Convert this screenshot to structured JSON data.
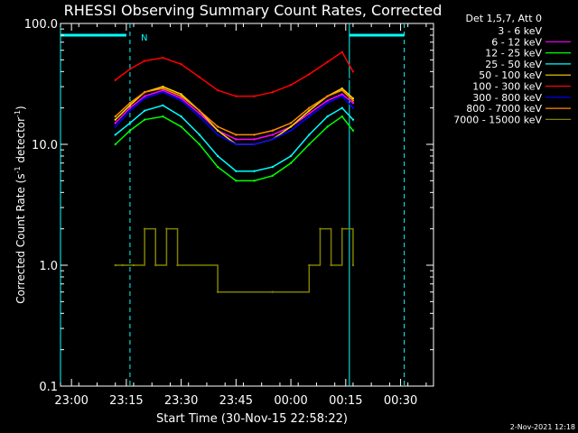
{
  "chart_data": {
    "type": "line",
    "title": "RHESSI Observing Summary Count Rates, Corrected",
    "xlabel": "Start Time (30-Nov-15 22:58:22)",
    "ylabel": "Corrected Count Rate (s⁻¹ detector⁻¹)",
    "ylabel_main": "Corrected Count Rate (s",
    "ylabel_sup1": "-1",
    "ylabel_mid": " detector",
    "ylabel_sup2": "-1",
    "ylabel_end": ")",
    "yscale": "log",
    "ylim": [
      0.1,
      100.0
    ],
    "xlim": [
      "22:57",
      "00:39"
    ],
    "x_ticks": [
      "23:00",
      "23:15",
      "23:30",
      "23:45",
      "00:00",
      "00:15",
      "00:30"
    ],
    "y_ticks": [
      "100.0",
      "10.0",
      "1.0",
      "0.1"
    ],
    "legend_header": "Det 1,5,7, Att 0",
    "footer_date": "2-Nov-2021 12:18",
    "flag_label": "N",
    "flag_bars": [
      {
        "start": "22:57",
        "end": "23:15",
        "level": 80
      },
      {
        "start": "00:16",
        "end": "00:31",
        "level": 80
      }
    ],
    "markers": [
      {
        "time": "22:57",
        "color": "#00ffff",
        "style": "solid"
      },
      {
        "time": "23:16",
        "color": "#00ffff",
        "style": "dashed"
      },
      {
        "time": "00:16",
        "color": "#00ffff",
        "style": "solid"
      },
      {
        "time": "00:31",
        "color": "#00ffff",
        "style": "dashed"
      }
    ],
    "series": [
      {
        "name": "3 - 6 keV",
        "color": "#000000",
        "x": [
          "23:12",
          "23:16",
          "23:20",
          "23:25",
          "23:30",
          "23:35",
          "23:40",
          "23:45",
          "23:50",
          "23:55",
          "00:00",
          "00:05",
          "00:10",
          "00:14",
          "00:17"
        ],
        "values": [
          24,
          31,
          37,
          40,
          36,
          28,
          22,
          20,
          20,
          21,
          24,
          28,
          34,
          38,
          33
        ]
      },
      {
        "name": "6 - 12 keV",
        "color": "#ff00ff",
        "x": [
          "23:12",
          "23:16",
          "23:20",
          "23:25",
          "23:30",
          "23:35",
          "23:40",
          "23:45",
          "23:50",
          "23:55",
          "00:00",
          "00:05",
          "00:10",
          "00:14",
          "00:17"
        ],
        "values": [
          15,
          20,
          25,
          28,
          24,
          18,
          13,
          11,
          11,
          12,
          14,
          18,
          23,
          26,
          22
        ]
      },
      {
        "name": "12 - 25 keV",
        "color": "#00ff00",
        "x": [
          "23:12",
          "23:16",
          "23:20",
          "23:25",
          "23:30",
          "23:35",
          "23:40",
          "23:45",
          "23:50",
          "23:55",
          "00:00",
          "00:05",
          "00:10",
          "00:14",
          "00:17"
        ],
        "values": [
          10,
          13,
          16,
          17,
          14,
          10,
          6.5,
          5,
          5,
          5.5,
          7,
          10,
          14,
          17,
          13
        ]
      },
      {
        "name": "25 - 50 keV",
        "color": "#00ffff",
        "x": [
          "23:12",
          "23:16",
          "23:20",
          "23:25",
          "23:30",
          "23:35",
          "23:40",
          "23:45",
          "23:50",
          "23:55",
          "00:00",
          "00:05",
          "00:10",
          "00:14",
          "00:17"
        ],
        "values": [
          12,
          15,
          19,
          21,
          17,
          12,
          8,
          6,
          6,
          6.5,
          8,
          12,
          17,
          20,
          16
        ]
      },
      {
        "name": "50 - 100 keV",
        "color": "#ffd700",
        "x": [
          "23:12",
          "23:16",
          "23:20",
          "23:25",
          "23:30",
          "23:35",
          "23:40",
          "23:45",
          "23:50",
          "23:55",
          "00:00",
          "00:05",
          "00:10",
          "00:14",
          "00:17"
        ],
        "values": [
          16,
          21,
          27,
          30,
          26,
          19,
          13,
          10,
          10,
          11,
          14,
          19,
          25,
          29,
          24
        ]
      },
      {
        "name": "100 - 300 keV",
        "color": "#ff0000",
        "x": [
          "23:12",
          "23:16",
          "23:20",
          "23:25",
          "23:30",
          "23:35",
          "23:40",
          "23:45",
          "23:50",
          "23:55",
          "00:00",
          "00:05",
          "00:10",
          "00:14",
          "00:17"
        ],
        "values": [
          34,
          42,
          49,
          52,
          46,
          36,
          28,
          25,
          25,
          27,
          31,
          38,
          48,
          58,
          40
        ]
      },
      {
        "name": "300 - 800 keV",
        "color": "#0000ff",
        "x": [
          "23:12",
          "23:16",
          "23:20",
          "23:25",
          "23:30",
          "23:35",
          "23:40",
          "23:45",
          "23:50",
          "23:55",
          "00:00",
          "00:05",
          "00:10",
          "00:14",
          "00:17"
        ],
        "values": [
          14,
          19,
          24,
          27,
          23,
          17,
          12,
          10,
          10,
          11,
          13,
          17,
          22,
          25,
          20
        ]
      },
      {
        "name": "800 - 7000 keV",
        "color": "#ff8c00",
        "x": [
          "23:12",
          "23:16",
          "23:20",
          "23:25",
          "23:30",
          "23:35",
          "23:40",
          "23:45",
          "23:50",
          "23:55",
          "00:00",
          "00:05",
          "00:10",
          "00:14",
          "00:17"
        ],
        "values": [
          17,
          22,
          27,
          29,
          25,
          19,
          14,
          12,
          12,
          13,
          15,
          20,
          25,
          28,
          23
        ]
      },
      {
        "name": "7000 - 15000 keV",
        "color": "#808000",
        "x": [
          "23:12",
          "23:14",
          "23:17",
          "23:20",
          "23:23",
          "23:26",
          "23:29",
          "23:40",
          "23:55",
          "00:05",
          "00:08",
          "00:11",
          "00:14",
          "00:17"
        ],
        "values": [
          1.0,
          1.0,
          1.0,
          2.0,
          1.0,
          2.0,
          1.0,
          0.6,
          0.6,
          1.0,
          2.0,
          1.0,
          2.0,
          1.0
        ]
      }
    ]
  }
}
